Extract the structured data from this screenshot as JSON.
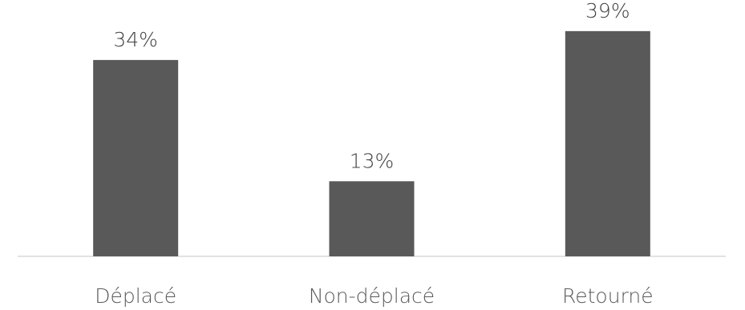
{
  "chart_data": {
    "type": "bar",
    "categories": [
      "Déplacé",
      "Non-déplacé",
      "Retourné"
    ],
    "values": [
      34,
      13,
      39
    ],
    "value_labels": [
      "34%",
      "13%",
      "39%"
    ],
    "title": "",
    "xlabel": "",
    "ylabel": "",
    "ylim": [
      0,
      43
    ],
    "grid": false,
    "legend": "none",
    "bar_color": "#595959",
    "axis_color": "#d9d9d9"
  }
}
